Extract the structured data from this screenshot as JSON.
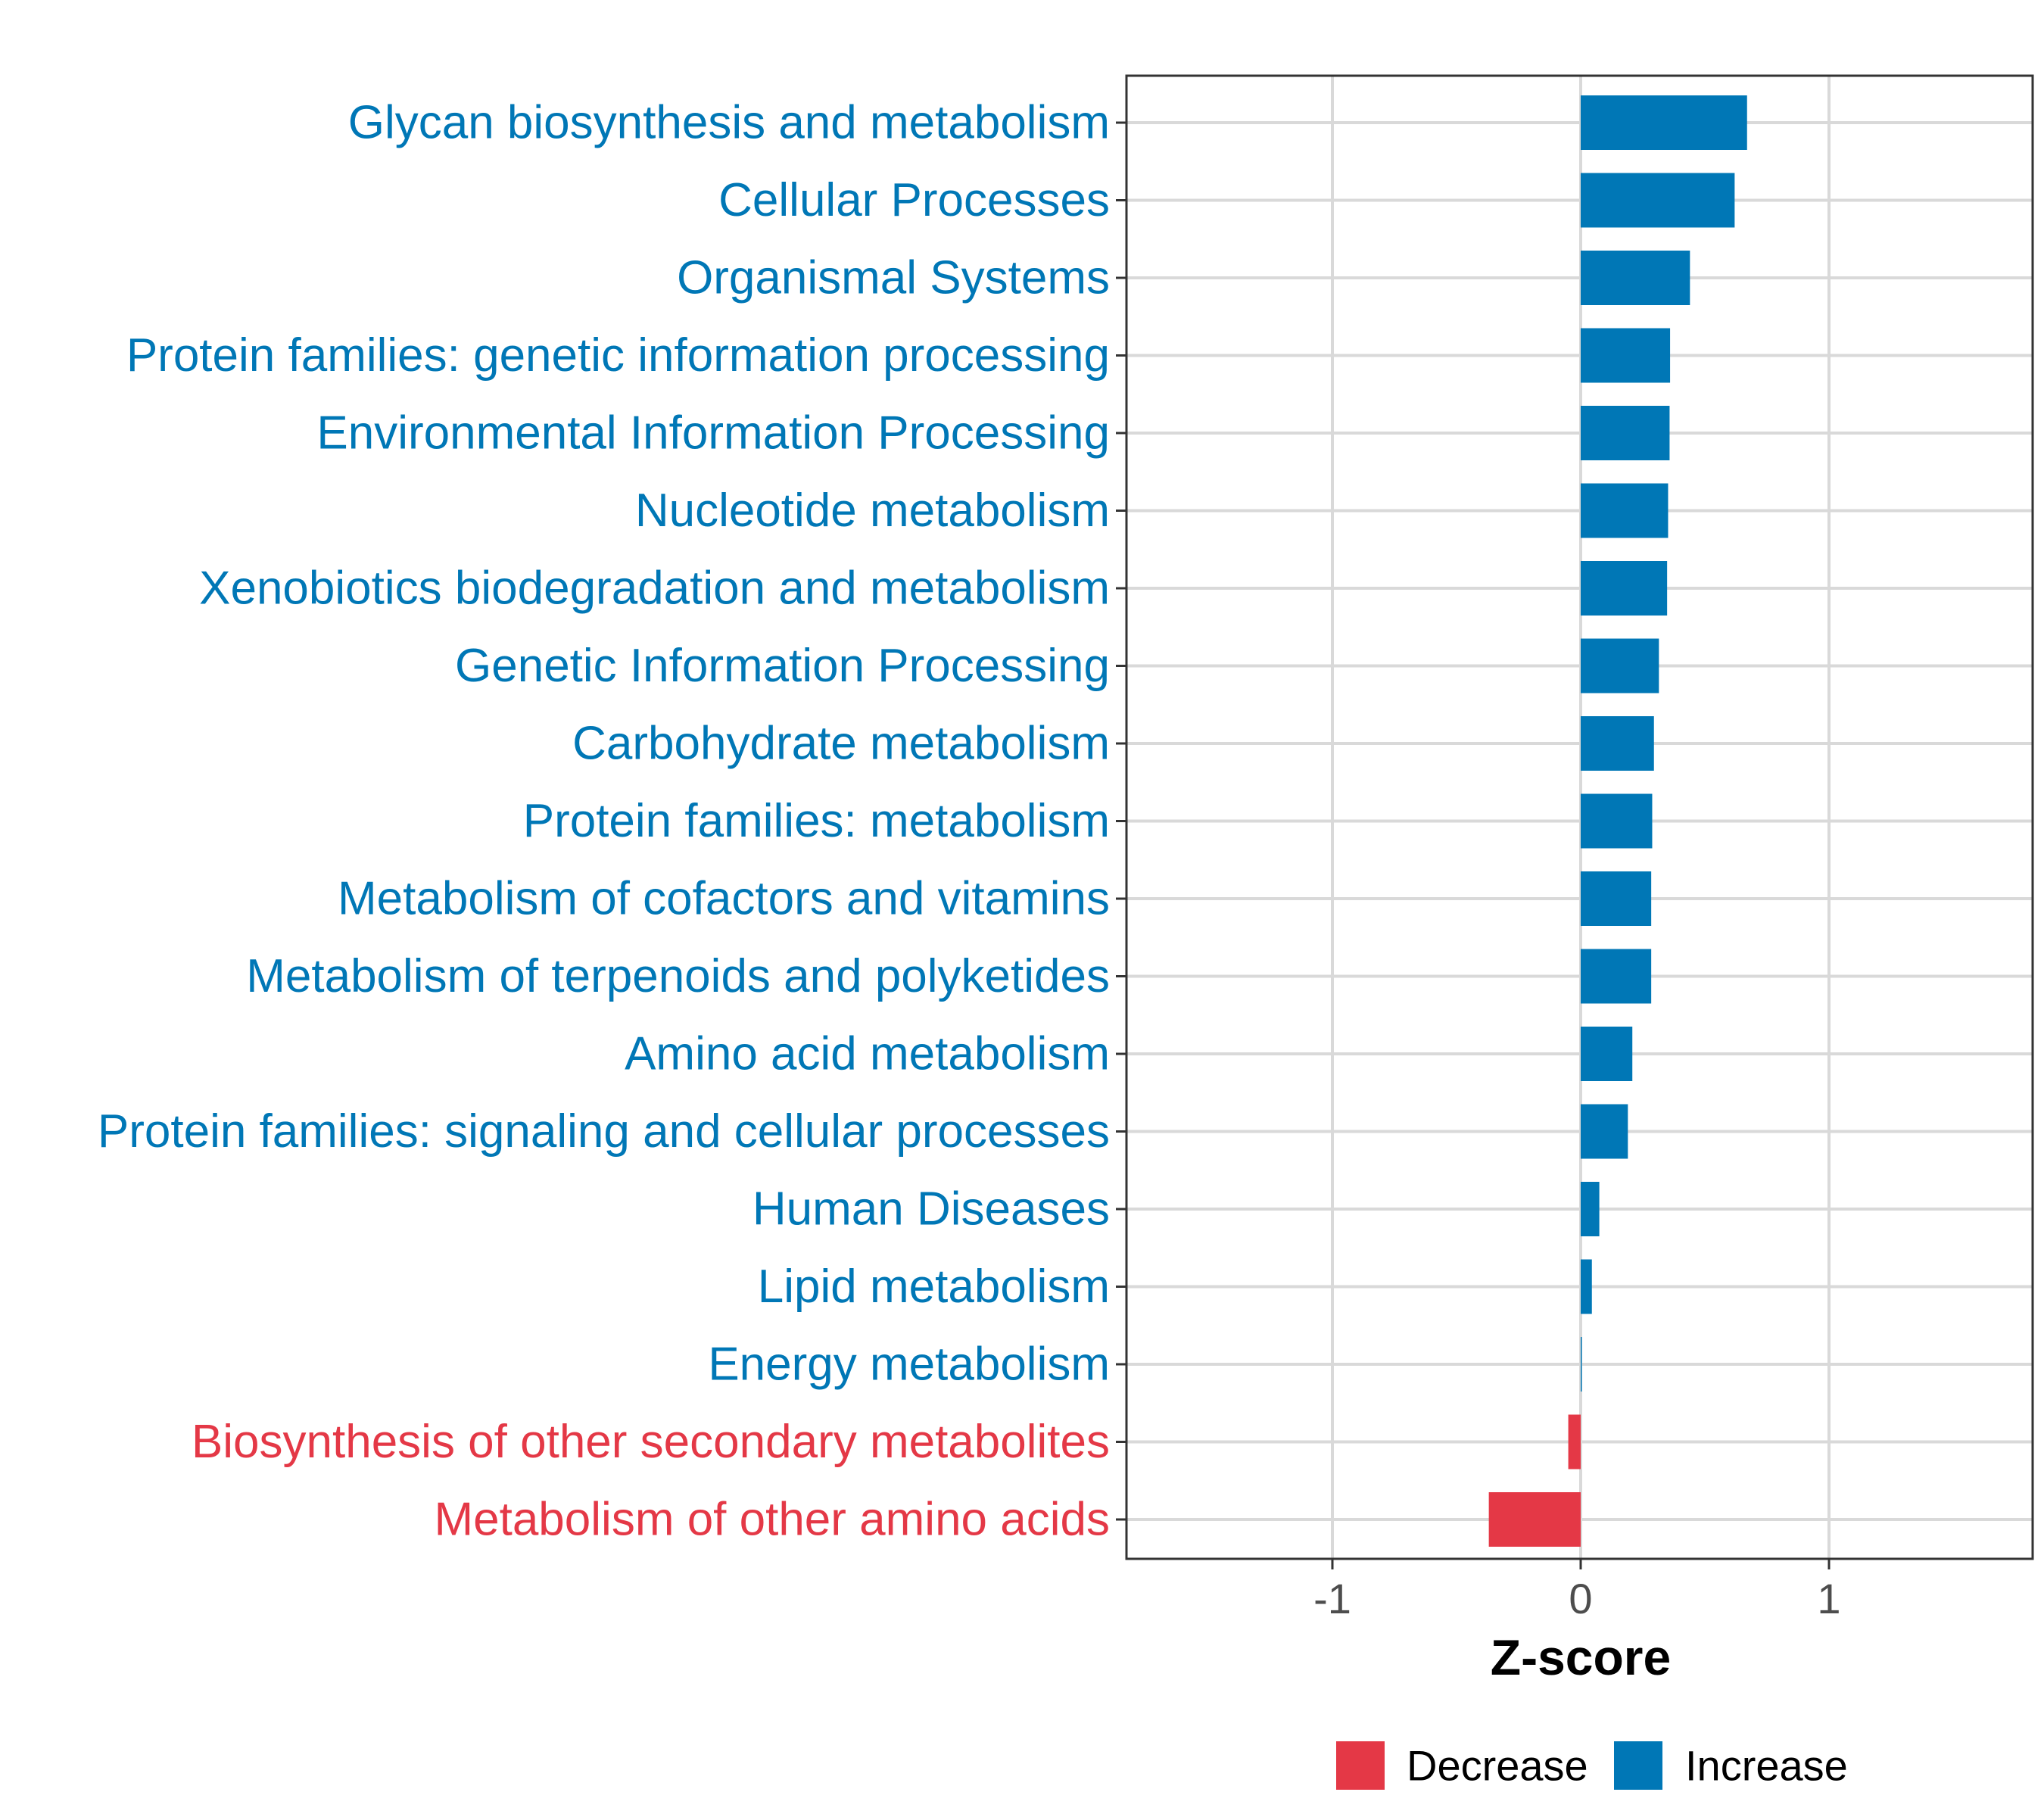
{
  "chart_data": {
    "type": "bar",
    "orientation": "horizontal",
    "title": "",
    "xlabel": "Z-score",
    "ylabel": "",
    "xlim": [
      -1.83,
      1.83
    ],
    "xticks": [
      -1,
      0,
      1
    ],
    "xtick_labels": [
      "-1",
      "0",
      "1"
    ],
    "grid": true,
    "categories": [
      "Glycan biosynthesis and metabolism",
      "Cellular Processes",
      "Organismal Systems",
      "Protein families: genetic information processing",
      "Environmental Information Processing",
      "Nucleotide metabolism",
      "Xenobiotics biodegradation and metabolism",
      "Genetic Information Processing",
      "Carbohydrate metabolism",
      "Protein families: metabolism",
      "Metabolism of cofactors and vitamins",
      "Metabolism of terpenoids and polyketides",
      "Amino acid metabolism",
      "Protein families: signaling and cellular processes",
      "Human Diseases",
      "Lipid metabolism",
      "Energy metabolism",
      "Biosynthesis of other secondary metabolites",
      "Metabolism of other amino acids"
    ],
    "values": [
      0.67,
      0.62,
      0.44,
      0.36,
      0.358,
      0.352,
      0.348,
      0.315,
      0.295,
      0.288,
      0.284,
      0.284,
      0.208,
      0.19,
      0.075,
      0.045,
      0.003,
      -0.05,
      -0.37
    ],
    "groups": [
      "Increase",
      "Increase",
      "Increase",
      "Increase",
      "Increase",
      "Increase",
      "Increase",
      "Increase",
      "Increase",
      "Increase",
      "Increase",
      "Increase",
      "Increase",
      "Increase",
      "Increase",
      "Increase",
      "Increase",
      "Decrease",
      "Decrease"
    ],
    "legend": {
      "position": "bottom",
      "items": [
        {
          "name": "Decrease",
          "color": "#E43846"
        },
        {
          "name": "Increase",
          "color": "#0077B6"
        }
      ]
    },
    "colors": {
      "Decrease": "#E43846",
      "Increase": "#0077B6"
    }
  }
}
